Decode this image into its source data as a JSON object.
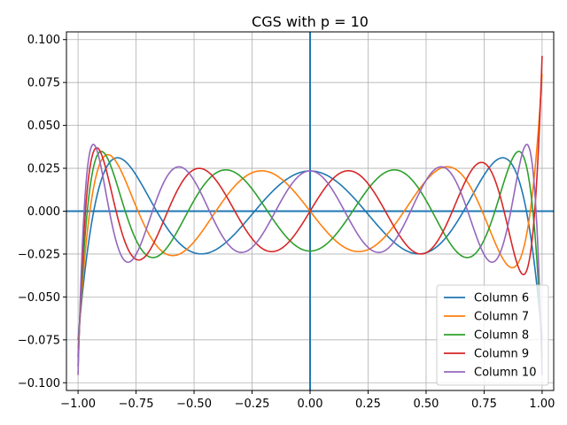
{
  "chart_data": {
    "type": "line",
    "title": "CGS with p = 10",
    "xlabel": "",
    "ylabel": "",
    "xlim": [
      -1.05,
      1.05
    ],
    "ylim": [
      -0.1045,
      0.1045
    ],
    "grid": true,
    "legend_position": "lower-right",
    "xticks": [
      -1.0,
      -0.75,
      -0.5,
      -0.25,
      0.0,
      0.25,
      0.5,
      0.75,
      1.0
    ],
    "xtick_labels": [
      "−1.00",
      "−0.75",
      "−0.50",
      "−0.25",
      "0.00",
      "0.25",
      "0.50",
      "0.75",
      "1.00"
    ],
    "yticks": [
      -0.1,
      -0.075,
      -0.05,
      -0.025,
      0.0,
      0.025,
      0.05,
      0.075,
      0.1
    ],
    "ytick_labels": [
      "−0.100",
      "−0.075",
      "−0.050",
      "−0.025",
      "0.000",
      "0.025",
      "0.050",
      "0.075",
      "0.100"
    ],
    "reference_lines": {
      "x": 0,
      "y": 0,
      "color": "#1f77b4"
    },
    "series": [
      {
        "name": "Column 6",
        "color": "#1f77b4",
        "degree": 6,
        "norm_end": 0.075
      },
      {
        "name": "Column 7",
        "color": "#ff7f0e",
        "degree": 7,
        "norm_end": 0.08
      },
      {
        "name": "Column 8",
        "color": "#2ca02c",
        "degree": 8,
        "norm_end": 0.085
      },
      {
        "name": "Column 9",
        "color": "#d62728",
        "degree": 9,
        "norm_end": 0.0905
      },
      {
        "name": "Column 10",
        "color": "#9467bd",
        "degree": 10,
        "norm_end": 0.0955
      }
    ]
  }
}
